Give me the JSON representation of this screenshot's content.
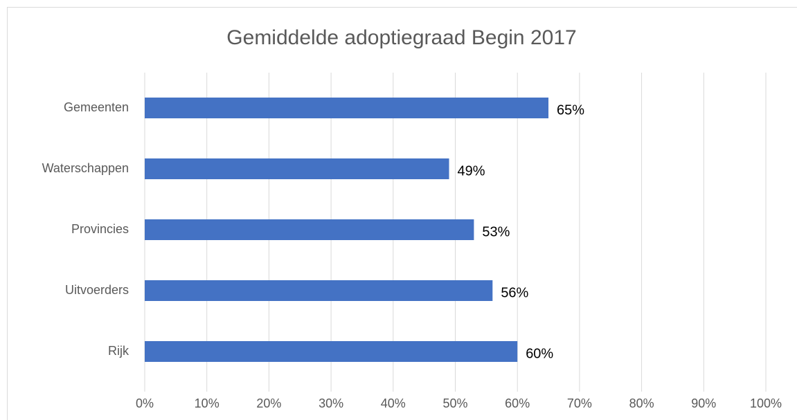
{
  "chart_data": {
    "type": "bar",
    "orientation": "horizontal",
    "title": "Gemiddelde adoptiegraad Begin 2017",
    "categories": [
      "Gemeenten",
      "Waterschappen",
      "Provincies",
      "Uitvoerders",
      "Rijk"
    ],
    "values": [
      65,
      49,
      53,
      56,
      60
    ],
    "value_labels": [
      "65%",
      "49%",
      "53%",
      "56%",
      "60%"
    ],
    "color": "#4472c4",
    "xlim": [
      0,
      100
    ],
    "xticks": [
      {
        "value": 0,
        "label": "0%"
      },
      {
        "value": 10,
        "label": "10%"
      },
      {
        "value": 20,
        "label": "20%"
      },
      {
        "value": 30,
        "label": "30%"
      },
      {
        "value": 40,
        "label": "40%"
      },
      {
        "value": 50,
        "label": "50%"
      },
      {
        "value": 60,
        "label": "60%"
      },
      {
        "value": 70,
        "label": "70%"
      },
      {
        "value": 80,
        "label": "80%"
      },
      {
        "value": 90,
        "label": "90%"
      },
      {
        "value": 100,
        "label": "100%"
      }
    ],
    "grid": true
  }
}
